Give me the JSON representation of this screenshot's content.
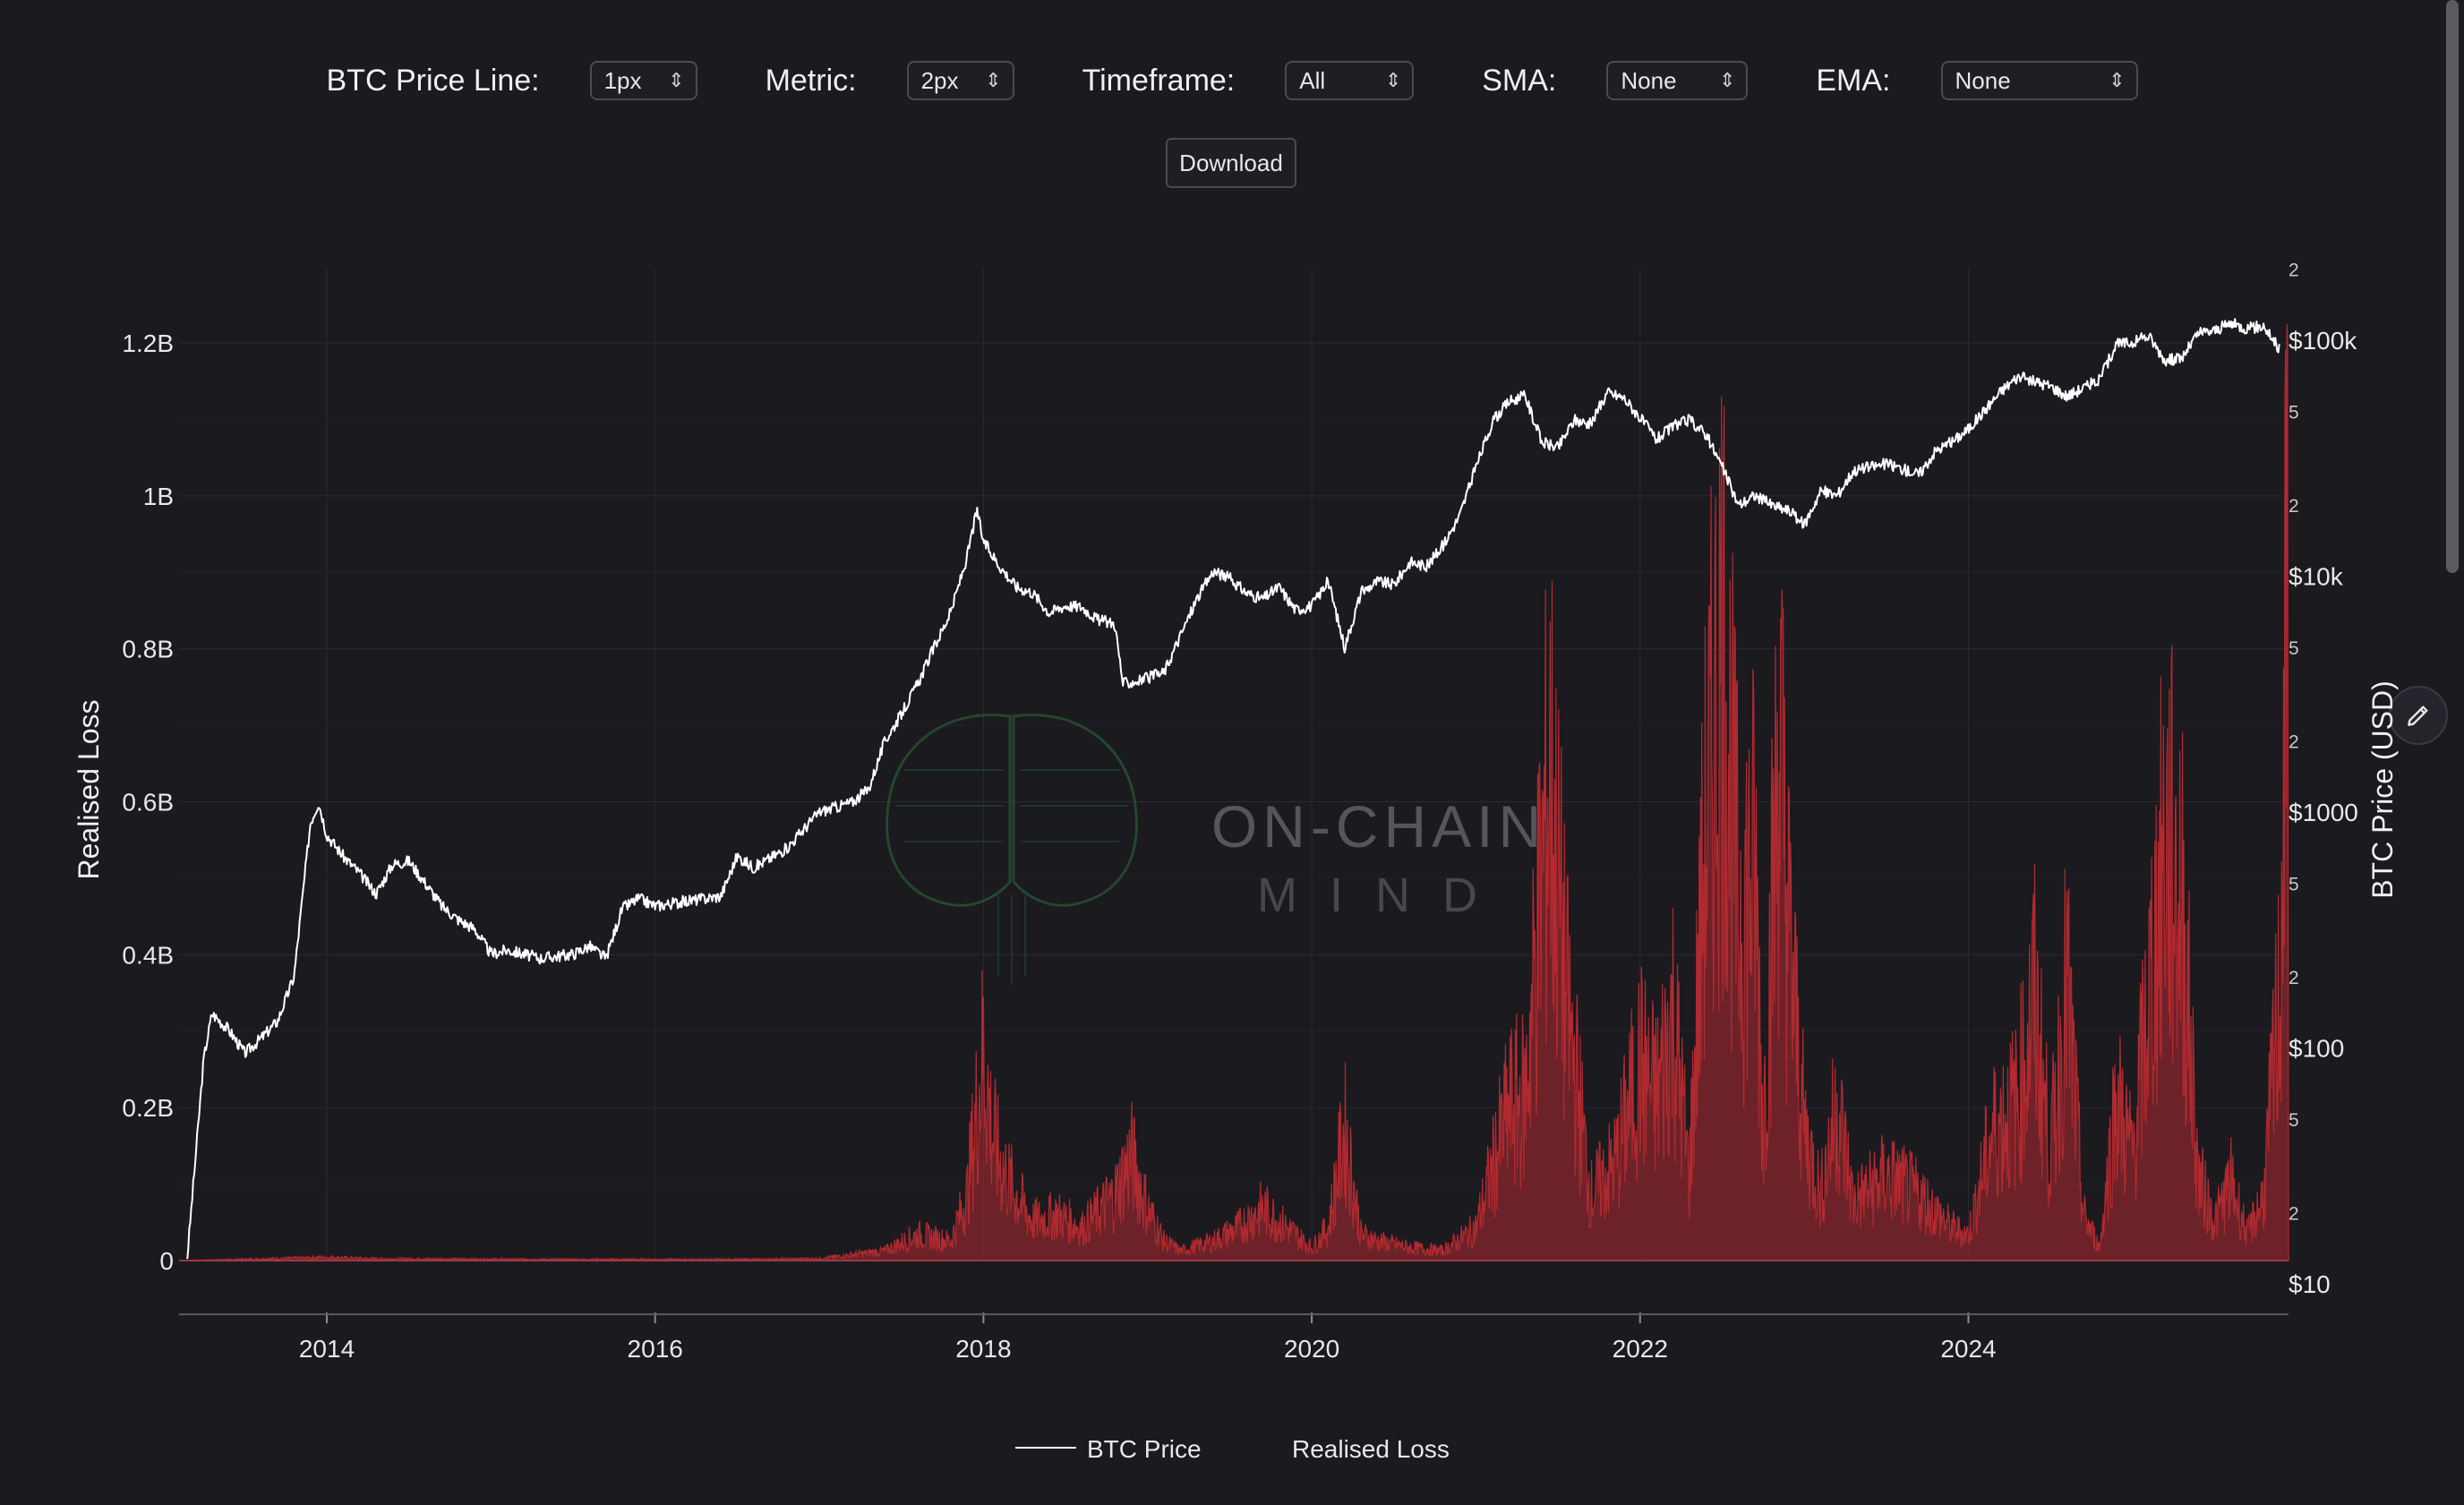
{
  "controls": {
    "price_line": {
      "label": "BTC Price Line:",
      "value": "1px"
    },
    "metric": {
      "label": "Metric:",
      "value": "2px"
    },
    "timeframe": {
      "label": "Timeframe:",
      "value": "All"
    },
    "sma": {
      "label": "SMA:",
      "value": "None"
    },
    "ema": {
      "label": "EMA:",
      "value": "None"
    },
    "download_label": "Download"
  },
  "watermark": {
    "line1": "ON-CHAIN",
    "line2": "MIND"
  },
  "icons": {
    "edit": "pencil-icon",
    "select_chevron": "up-down-chevron-icon"
  },
  "colors": {
    "background": "#1a1a1f",
    "price_line": "#ffffff",
    "loss_fill": "#b02a30",
    "grid": "#2a2a31"
  },
  "chart_data": {
    "type": "line",
    "title": "",
    "xlabel": "",
    "ylabel_left": "Realised Loss",
    "ylabel_right": "BTC Price (USD)",
    "x_ticks": [
      "2014",
      "2016",
      "2018",
      "2020",
      "2022",
      "2024"
    ],
    "x_range": [
      2013.1,
      2025.95
    ],
    "y_left": {
      "ticks": [
        "0",
        "0.2B",
        "0.4B",
        "0.6B",
        "0.8B",
        "1B",
        "1.2B"
      ],
      "range": [
        0,
        1200000000
      ]
    },
    "y_right": {
      "scale": "log",
      "range": [
        10,
        200000
      ],
      "major_ticks": [
        {
          "value": 10,
          "label": "$10"
        },
        {
          "value": 100,
          "label": "$100"
        },
        {
          "value": 1000,
          "label": "$1000"
        },
        {
          "value": 10000,
          "label": "$10k"
        },
        {
          "value": 100000,
          "label": "$100k"
        }
      ],
      "minor_ticks": [
        {
          "value": 20,
          "label": "2"
        },
        {
          "value": 50,
          "label": "5"
        },
        {
          "value": 200,
          "label": "2"
        },
        {
          "value": 500,
          "label": "5"
        },
        {
          "value": 2000,
          "label": "2"
        },
        {
          "value": 5000,
          "label": "5"
        },
        {
          "value": 20000,
          "label": "2"
        },
        {
          "value": 50000,
          "label": "5"
        },
        {
          "value": 200000,
          "label": "2"
        }
      ]
    },
    "legend": {
      "placement": "bottom-center",
      "items": [
        "BTC Price",
        "Realised Loss"
      ]
    },
    "grid": true,
    "series": [
      {
        "name": "BTC Price",
        "axis": "right",
        "x": [
          2013.15,
          2013.25,
          2013.3,
          2013.4,
          2013.5,
          2013.6,
          2013.7,
          2013.8,
          2013.9,
          2013.95,
          2014.0,
          2014.1,
          2014.2,
          2014.3,
          2014.4,
          2014.5,
          2014.6,
          2014.7,
          2014.8,
          2014.9,
          2015.0,
          2015.1,
          2015.3,
          2015.5,
          2015.6,
          2015.7,
          2015.8,
          2015.9,
          2016.0,
          2016.2,
          2016.4,
          2016.5,
          2016.6,
          2016.8,
          2017.0,
          2017.2,
          2017.3,
          2017.4,
          2017.5,
          2017.6,
          2017.7,
          2017.8,
          2017.9,
          2017.96,
          2018.0,
          2018.1,
          2018.2,
          2018.3,
          2018.4,
          2018.5,
          2018.6,
          2018.7,
          2018.8,
          2018.85,
          2018.95,
          2019.1,
          2019.3,
          2019.4,
          2019.5,
          2019.6,
          2019.7,
          2019.8,
          2019.9,
          2020.0,
          2020.1,
          2020.2,
          2020.3,
          2020.4,
          2020.5,
          2020.6,
          2020.7,
          2020.8,
          2020.9,
          2021.0,
          2021.1,
          2021.2,
          2021.3,
          2021.4,
          2021.5,
          2021.6,
          2021.7,
          2021.8,
          2021.9,
          2022.0,
          2022.1,
          2022.2,
          2022.3,
          2022.4,
          2022.5,
          2022.6,
          2022.7,
          2022.8,
          2022.9,
          2023.0,
          2023.1,
          2023.2,
          2023.3,
          2023.5,
          2023.7,
          2023.8,
          2023.9,
          2024.0,
          2024.2,
          2024.3,
          2024.5,
          2024.6,
          2024.8,
          2024.9,
          2025.0,
          2025.1,
          2025.2,
          2025.3,
          2025.4,
          2025.5,
          2025.6,
          2025.7,
          2025.8,
          2025.9
        ],
        "y": [
          13,
          90,
          140,
          120,
          95,
          110,
          130,
          200,
          900,
          1100,
          800,
          650,
          550,
          450,
          600,
          620,
          500,
          400,
          350,
          320,
          250,
          260,
          240,
          250,
          270,
          240,
          390,
          430,
          400,
          420,
          440,
          650,
          580,
          700,
          1000,
          1100,
          1250,
          2000,
          2600,
          3500,
          5000,
          7000,
          12000,
          19000,
          14000,
          11000,
          9000,
          8500,
          7000,
          7500,
          7400,
          6500,
          6300,
          3500,
          3600,
          3900,
          8000,
          10500,
          9800,
          8500,
          8000,
          9000,
          7200,
          7500,
          9500,
          5000,
          8500,
          9500,
          9200,
          11500,
          11000,
          13500,
          18000,
          29000,
          45000,
          55000,
          58000,
          37000,
          35000,
          46000,
          44000,
          60000,
          57000,
          47000,
          38000,
          43000,
          46000,
          40000,
          29000,
          20000,
          22000,
          20000,
          19000,
          16500,
          23000,
          22000,
          28000,
          30000,
          27000,
          34000,
          37000,
          42000,
          61000,
          70000,
          64000,
          58000,
          68000,
          96000,
          98000,
          104000,
          82000,
          84000,
          107000,
          110000,
          118000,
          112000,
          115000,
          90000
        ]
      },
      {
        "name": "Realised Loss",
        "axis": "left",
        "x": [
          2013.1,
          2014.0,
          2014.3,
          2015.5,
          2016.5,
          2017.0,
          2017.4,
          2017.6,
          2017.8,
          2017.9,
          2018.0,
          2018.05,
          2018.1,
          2018.2,
          2018.3,
          2018.45,
          2018.6,
          2018.8,
          2018.9,
          2019.0,
          2019.1,
          2019.2,
          2019.4,
          2019.55,
          2019.7,
          2019.8,
          2019.9,
          2020.0,
          2020.1,
          2020.2,
          2020.3,
          2020.4,
          2020.6,
          2020.8,
          2021.0,
          2021.2,
          2021.3,
          2021.45,
          2021.55,
          2021.7,
          2021.85,
          2022.0,
          2022.1,
          2022.2,
          2022.3,
          2022.4,
          2022.5,
          2022.6,
          2022.7,
          2022.75,
          2022.85,
          2022.9,
          2023.0,
          2023.1,
          2023.2,
          2023.3,
          2023.5,
          2023.7,
          2023.9,
          2024.0,
          2024.15,
          2024.3,
          2024.4,
          2024.5,
          2024.6,
          2024.7,
          2024.8,
          2024.9,
          2025.0,
          2025.1,
          2025.2,
          2025.3,
          2025.4,
          2025.5,
          2025.6,
          2025.7,
          2025.8,
          2025.9,
          2025.95
        ],
        "y": [
          0,
          5000000,
          3000000,
          2000000,
          2000000,
          3000000,
          15000000,
          40000000,
          30000000,
          100000000,
          320000000,
          200000000,
          150000000,
          100000000,
          60000000,
          70000000,
          50000000,
          100000000,
          160000000,
          80000000,
          30000000,
          15000000,
          30000000,
          50000000,
          80000000,
          60000000,
          40000000,
          20000000,
          50000000,
          200000000,
          40000000,
          30000000,
          20000000,
          15000000,
          50000000,
          230000000,
          250000000,
          750000000,
          400000000,
          100000000,
          150000000,
          300000000,
          250000000,
          380000000,
          130000000,
          660000000,
          960000000,
          540000000,
          600000000,
          200000000,
          810000000,
          520000000,
          200000000,
          100000000,
          240000000,
          90000000,
          130000000,
          100000000,
          50000000,
          40000000,
          200000000,
          240000000,
          400000000,
          160000000,
          420000000,
          70000000,
          20000000,
          250000000,
          160000000,
          400000000,
          640000000,
          550000000,
          130000000,
          60000000,
          120000000,
          40000000,
          100000000,
          420000000,
          1180000000
        ]
      }
    ]
  }
}
